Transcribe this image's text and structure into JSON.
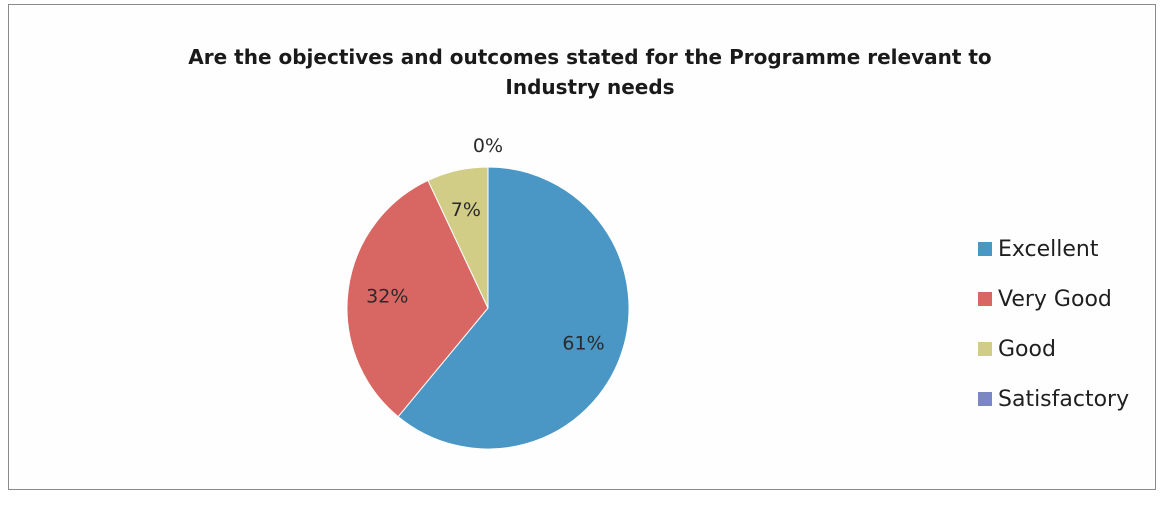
{
  "chart_data": {
    "type": "pie",
    "title_lines": [
      "Are the objectives and outcomes stated for the Programme relevant to",
      "Industry needs"
    ],
    "slices": [
      {
        "label": "Excellent",
        "value": 61,
        "data_label": "61%",
        "color": "#4a97c6"
      },
      {
        "label": "Very Good",
        "value": 32,
        "data_label": "32%",
        "color": "#d86763"
      },
      {
        "label": "Good",
        "value": 7,
        "data_label": "7%",
        "color": "#d2cd86"
      },
      {
        "label": "Satisfactory",
        "value": 0,
        "data_label": "0%",
        "color": "#7a87c4"
      }
    ],
    "legend_position": "right"
  }
}
